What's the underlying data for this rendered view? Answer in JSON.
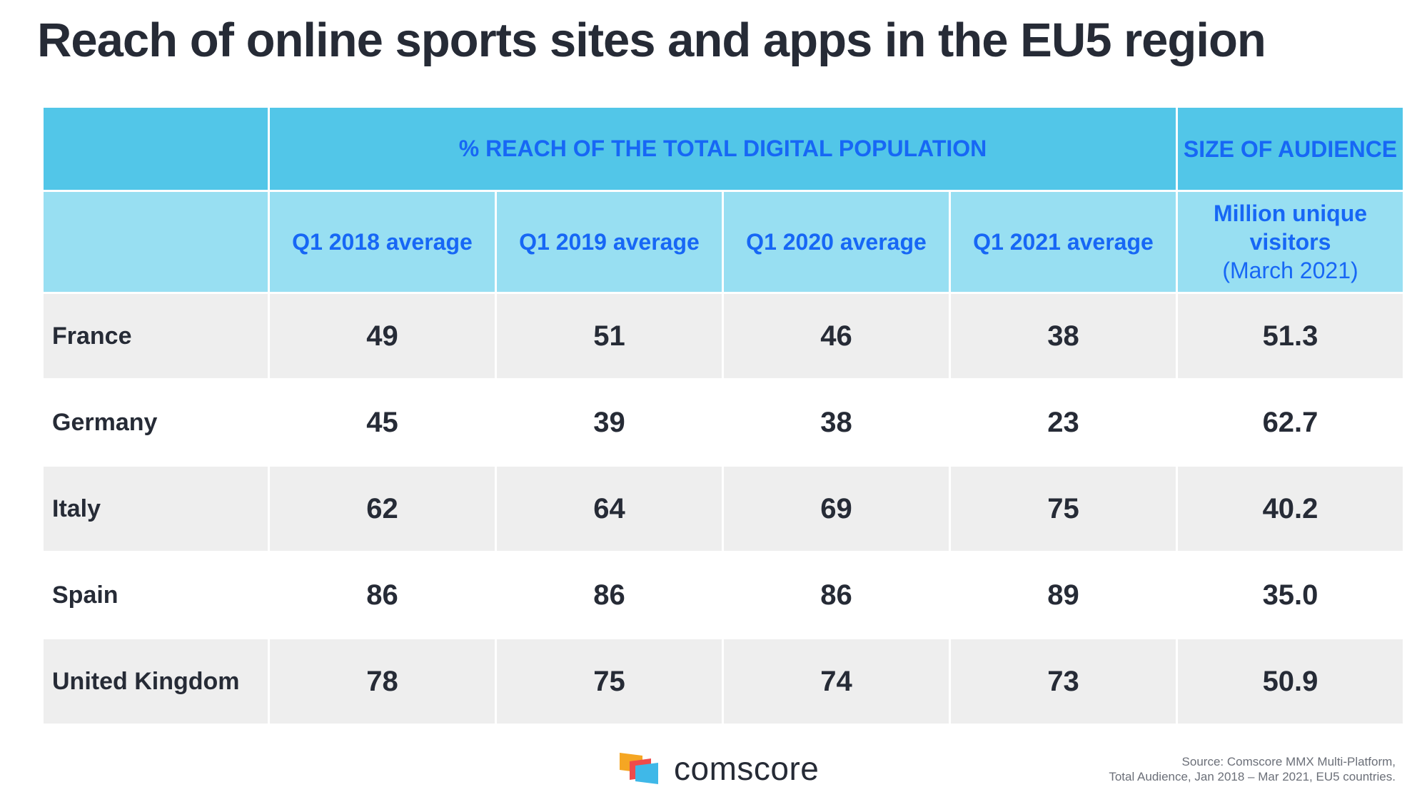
{
  "title": "Reach of online sports sites and apps in the EU5 region",
  "table": {
    "group_header": "% REACH OF THE TOTAL DIGITAL POPULATION",
    "size_header": "SIZE OF AUDIENCE",
    "columns": [
      "Q1 2018 average",
      "Q1 2019 average",
      "Q1 2020 average",
      "Q1 2021 average"
    ],
    "size_column": {
      "line1": "Million unique visitors",
      "line2": "(March 2021)"
    },
    "rows": [
      {
        "country": "France",
        "values": [
          "49",
          "51",
          "46",
          "38"
        ],
        "size": "51.3"
      },
      {
        "country": "Germany",
        "values": [
          "45",
          "39",
          "38",
          "23"
        ],
        "size": "62.7"
      },
      {
        "country": "Italy",
        "values": [
          "62",
          "64",
          "69",
          "75"
        ],
        "size": "40.2"
      },
      {
        "country": "Spain",
        "values": [
          "86",
          "86",
          "86",
          "89"
        ],
        "size": "35.0"
      },
      {
        "country": "United Kingdom",
        "values": [
          "78",
          "75",
          "74",
          "73"
        ],
        "size": "50.9"
      }
    ]
  },
  "logo": {
    "text": "comscore"
  },
  "source": {
    "line1": "Source: Comscore MMX Multi-Platform,",
    "line2": "Total Audience, Jan 2018 – Mar 2021, EU5 countries."
  },
  "colors": {
    "header_dark": "#52c6e8",
    "header_light": "#98dff2",
    "header_text": "#1767f5",
    "row_shade": "#eeeeee",
    "text": "#262b36"
  }
}
